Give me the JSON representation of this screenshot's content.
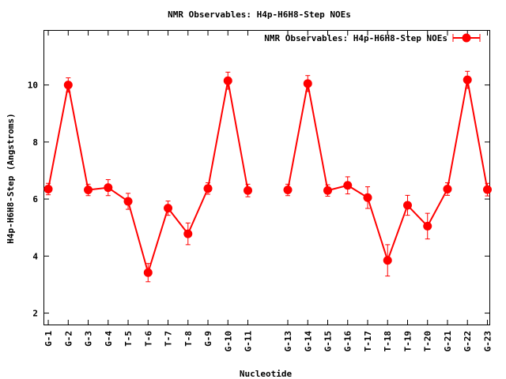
{
  "chart_data": {
    "type": "line",
    "title": "NMR Observables: H4p-H6H8-Step NOEs",
    "xlabel": "Nucleotide",
    "ylabel": "H4p-H6H8-Step (Angstroms)",
    "ylim": [
      1.6,
      11.9
    ],
    "yticks": [
      2,
      4,
      6,
      8,
      10
    ],
    "xlim": [
      0.8,
      23.1
    ],
    "grid": false,
    "legend_position": "top-right",
    "series": [
      {
        "name": "NMR Observables: H4p-H6H8-Step NOEs",
        "color": "#ff0000",
        "marker": "circle",
        "segments": [
          {
            "points": [
              {
                "x": 1,
                "label": "G-1",
                "y": 6.35,
                "err": 0.2
              },
              {
                "x": 2,
                "label": "G-2",
                "y": 10.0,
                "err": 0.25
              },
              {
                "x": 3,
                "label": "G-3",
                "y": 6.32,
                "err": 0.2
              },
              {
                "x": 4,
                "label": "G-4",
                "y": 6.4,
                "err": 0.28
              },
              {
                "x": 5,
                "label": "T-5",
                "y": 5.92,
                "err": 0.28
              },
              {
                "x": 6,
                "label": "T-6",
                "y": 3.42,
                "err": 0.32
              },
              {
                "x": 7,
                "label": "T-7",
                "y": 5.68,
                "err": 0.25
              },
              {
                "x": 8,
                "label": "T-8",
                "y": 4.78,
                "err": 0.38
              },
              {
                "x": 9,
                "label": "G-9",
                "y": 6.37,
                "err": 0.2
              },
              {
                "x": 10,
                "label": "G-10",
                "y": 10.15,
                "err": 0.3
              },
              {
                "x": 11,
                "label": "G-11",
                "y": 6.3,
                "err": 0.22
              }
            ]
          },
          {
            "points": [
              {
                "x": 13,
                "label": "G-13",
                "y": 6.32,
                "err": 0.2
              },
              {
                "x": 14,
                "label": "G-14",
                "y": 10.05,
                "err": 0.28
              },
              {
                "x": 15,
                "label": "G-15",
                "y": 6.3,
                "err": 0.2
              },
              {
                "x": 16,
                "label": "G-16",
                "y": 6.48,
                "err": 0.3
              },
              {
                "x": 17,
                "label": "T-17",
                "y": 6.05,
                "err": 0.38
              },
              {
                "x": 18,
                "label": "T-18",
                "y": 3.85,
                "err": 0.55
              },
              {
                "x": 19,
                "label": "T-19",
                "y": 5.78,
                "err": 0.35
              },
              {
                "x": 20,
                "label": "T-20",
                "y": 5.05,
                "err": 0.45
              },
              {
                "x": 21,
                "label": "G-21",
                "y": 6.35,
                "err": 0.22
              },
              {
                "x": 22,
                "label": "G-22",
                "y": 10.18,
                "err": 0.3
              },
              {
                "x": 23,
                "label": "G-23",
                "y": 6.33,
                "err": 0.22
              }
            ]
          }
        ]
      }
    ]
  }
}
